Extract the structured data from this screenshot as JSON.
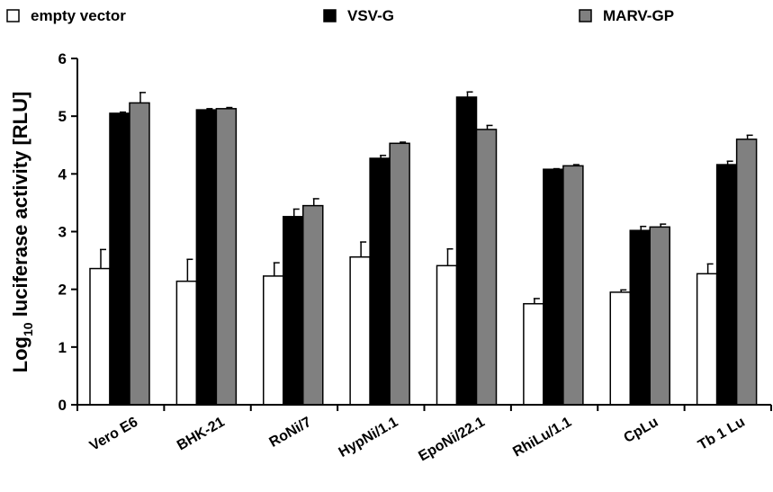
{
  "chart_data": {
    "type": "bar",
    "categories": [
      "Vero E6",
      "BHK-21",
      "RoNi/7",
      "HypNi/1.1",
      "EpoNi/22.1",
      "RhiLu/1.1",
      "CpLu",
      "Tb 1 Lu"
    ],
    "series": [
      {
        "name": "empty vector",
        "values": [
          2.36,
          2.14,
          2.23,
          2.56,
          2.41,
          1.75,
          1.95,
          2.27
        ],
        "errors": [
          0.33,
          0.38,
          0.23,
          0.26,
          0.29,
          0.09,
          0.04,
          0.17
        ],
        "color": "#ffffff"
      },
      {
        "name": "VSV-G",
        "values": [
          5.05,
          5.11,
          3.26,
          4.27,
          5.33,
          4.08,
          3.02,
          4.16
        ],
        "errors": [
          0.02,
          0.02,
          0.13,
          0.05,
          0.09,
          0.01,
          0.07,
          0.06
        ],
        "color": "#000000"
      },
      {
        "name": "MARV-GP",
        "values": [
          5.23,
          5.13,
          3.45,
          4.53,
          4.77,
          4.14,
          3.08,
          4.6
        ],
        "errors": [
          0.18,
          0.02,
          0.12,
          0.02,
          0.07,
          0.02,
          0.05,
          0.07
        ],
        "color": "#808080"
      }
    ],
    "xlabel": "",
    "ylabel_prefix": "Log",
    "ylabel_sub": "10",
    "ylabel_suffix": " luciferase activity [RLU]",
    "ylim": [
      0,
      6
    ],
    "yticks": [
      "0",
      "1",
      "2",
      "3",
      "4",
      "5",
      "6"
    ],
    "grid": false,
    "legend_position": "top"
  }
}
